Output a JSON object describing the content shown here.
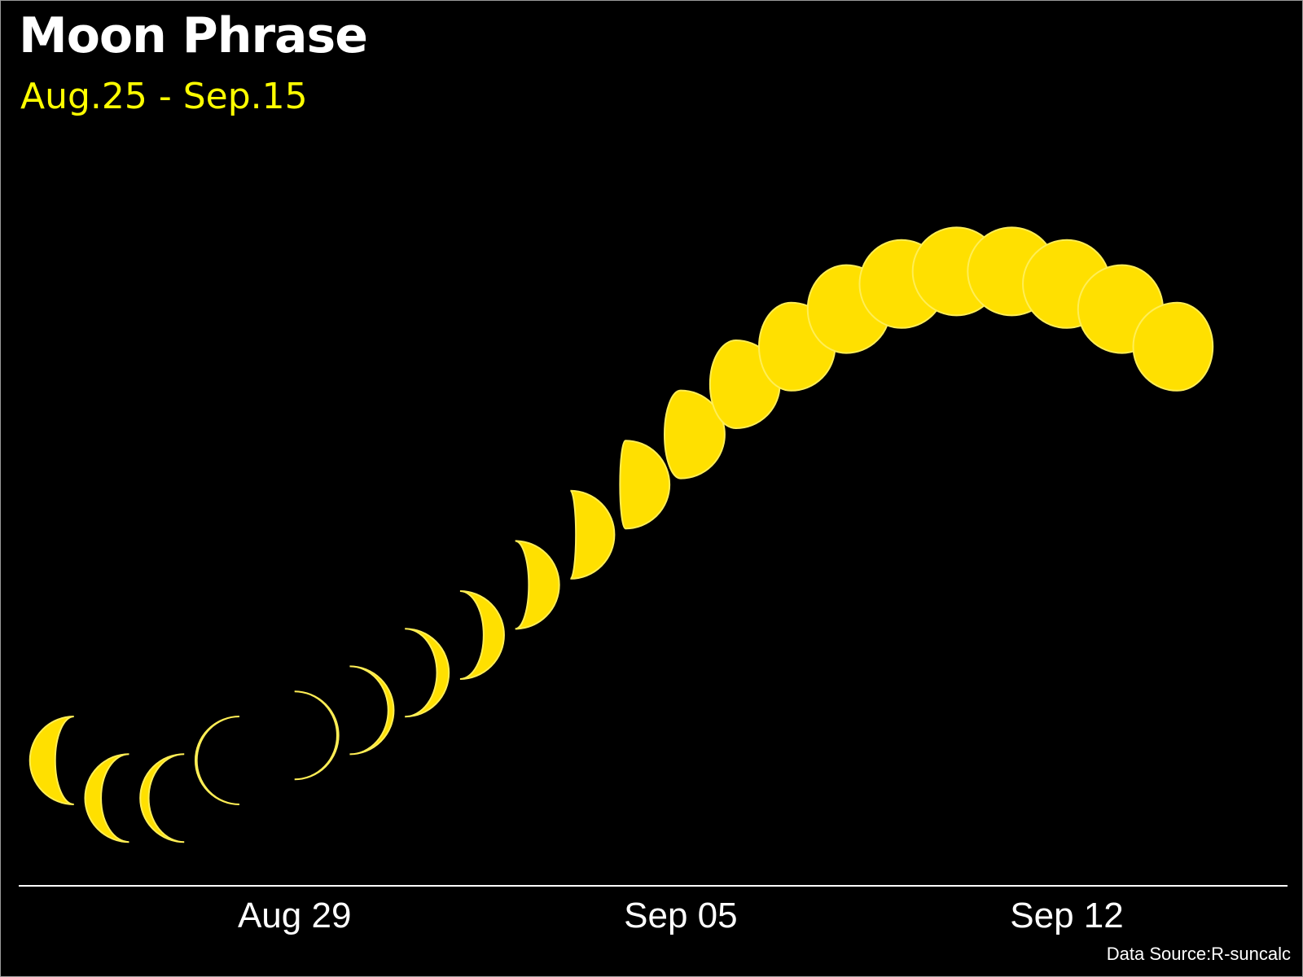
{
  "chart_data": {
    "type": "scatter",
    "title": "Moon Phrase",
    "subtitle": "Aug.25 - Sep.15",
    "source": "Data Source:R-suncalc",
    "xlabel": "",
    "ylabel": "",
    "x_tick_labels": [
      {
        "date": "2019-08-29",
        "label": "Aug 29"
      },
      {
        "date": "2019-09-05",
        "label": "Sep 05"
      },
      {
        "date": "2019-09-12",
        "label": "Sep 12"
      }
    ],
    "xlim": [
      "2019-08-24",
      "2019-09-16"
    ],
    "ylim": [
      0,
      1
    ],
    "grid": false,
    "marker": "moon phase glyph (lit fraction)",
    "points": [
      {
        "date": "2019-08-25",
        "illumination": 0.1,
        "phase": 0.82
      },
      {
        "date": "2019-08-26",
        "illumination": 0.04,
        "phase": 0.86
      },
      {
        "date": "2019-08-27",
        "illumination": 0.04,
        "phase": 0.9
      },
      {
        "date": "2019-08-28",
        "illumination": 0.1,
        "phase": 0.96
      },
      {
        "date": "2019-08-29",
        "illumination": 0.14,
        "phase": 0.04
      },
      {
        "date": "2019-08-30",
        "illumination": 0.18,
        "phase": 0.08
      },
      {
        "date": "2019-08-31",
        "illumination": 0.24,
        "phase": 0.12
      },
      {
        "date": "2019-09-01",
        "illumination": 0.3,
        "phase": 0.16
      },
      {
        "date": "2019-09-02",
        "illumination": 0.38,
        "phase": 0.2
      },
      {
        "date": "2019-09-03",
        "illumination": 0.46,
        "phase": 0.23
      },
      {
        "date": "2019-09-04",
        "illumination": 0.54,
        "phase": 0.27
      },
      {
        "date": "2019-09-05",
        "illumination": 0.62,
        "phase": 0.31
      },
      {
        "date": "2019-09-06",
        "illumination": 0.7,
        "phase": 0.35
      },
      {
        "date": "2019-09-07",
        "illumination": 0.76,
        "phase": 0.38
      },
      {
        "date": "2019-09-08",
        "illumination": 0.82,
        "phase": 0.42
      },
      {
        "date": "2019-09-09",
        "illumination": 0.86,
        "phase": 0.45
      },
      {
        "date": "2019-09-10",
        "illumination": 0.88,
        "phase": 0.49
      },
      {
        "date": "2019-09-11",
        "illumination": 0.88,
        "phase": 0.5
      },
      {
        "date": "2019-09-12",
        "illumination": 0.86,
        "phase": 0.53
      },
      {
        "date": "2019-09-13",
        "illumination": 0.82,
        "phase": 0.56
      },
      {
        "date": "2019-09-14",
        "illumination": 0.76,
        "phase": 0.6
      }
    ]
  },
  "colors": {
    "background": "#000000",
    "moon_fill": "#ffe000",
    "moon_outline": "#ffee55",
    "title": "#ffffff",
    "subtitle": "#ffff00",
    "axis": "#ffffff"
  }
}
